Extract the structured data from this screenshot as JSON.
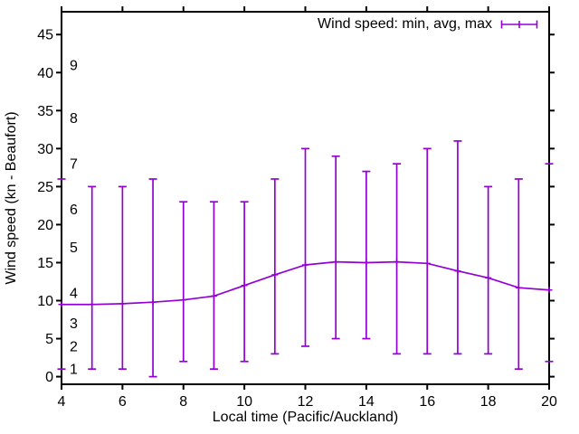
{
  "figure": {
    "background": "#ffffff",
    "text_color": "#000000",
    "border_color": "#000000"
  },
  "chart_data": {
    "type": "line",
    "subtype": "errorbars-min-avg-max",
    "title": "",
    "xlabel": "Local time (Pacific/Auckland)",
    "ylabel": "Wind speed (kn - Beaufort)",
    "legend": "Wind speed: min, avg, max",
    "legend_position": "top-right-inside",
    "series_color": "#9400d3",
    "xlim": [
      4,
      20
    ],
    "ylim": [
      -1,
      48
    ],
    "xticks": [
      4,
      6,
      8,
      10,
      12,
      14,
      16,
      18,
      20
    ],
    "xtick_labels": [
      "4",
      "6",
      "8",
      "10",
      "12",
      "14",
      "16",
      "18",
      "20"
    ],
    "yticks": [
      0,
      5,
      10,
      15,
      20,
      25,
      30,
      35,
      40,
      45
    ],
    "ytick_labels": [
      "0",
      "5",
      "10",
      "15",
      "20",
      "25",
      "30",
      "35",
      "40",
      "45"
    ],
    "grid": false,
    "beaufort_scale_labels": [
      {
        "force": "1",
        "kn": 1
      },
      {
        "force": "2",
        "kn": 4
      },
      {
        "force": "3",
        "kn": 7
      },
      {
        "force": "4",
        "kn": 11
      },
      {
        "force": "5",
        "kn": 17
      },
      {
        "force": "6",
        "kn": 22
      },
      {
        "force": "7",
        "kn": 28
      },
      {
        "force": "8",
        "kn": 34
      },
      {
        "force": "9",
        "kn": 41
      }
    ],
    "points": [
      {
        "x": 4,
        "min": 1,
        "avg": 9.5,
        "max": 26,
        "clipped": true
      },
      {
        "x": 5,
        "min": 1,
        "avg": 9.5,
        "max": 25
      },
      {
        "x": 6,
        "min": 1,
        "avg": 9.6,
        "max": 25
      },
      {
        "x": 7,
        "min": 0,
        "avg": 9.8,
        "max": 26
      },
      {
        "x": 8,
        "min": 2,
        "avg": 10.1,
        "max": 23
      },
      {
        "x": 9,
        "min": 1,
        "avg": 10.6,
        "max": 23
      },
      {
        "x": 10,
        "min": 2,
        "avg": 12.0,
        "max": 23
      },
      {
        "x": 11,
        "min": 3,
        "avg": 13.4,
        "max": 26
      },
      {
        "x": 12,
        "min": 4,
        "avg": 14.7,
        "max": 30
      },
      {
        "x": 13,
        "min": 5,
        "avg": 15.1,
        "max": 29
      },
      {
        "x": 14,
        "min": 5,
        "avg": 15.0,
        "max": 27
      },
      {
        "x": 15,
        "min": 3,
        "avg": 15.1,
        "max": 28
      },
      {
        "x": 16,
        "min": 3,
        "avg": 14.9,
        "max": 30
      },
      {
        "x": 17,
        "min": 3,
        "avg": 13.9,
        "max": 31
      },
      {
        "x": 18,
        "min": 3,
        "avg": 13.0,
        "max": 25
      },
      {
        "x": 19,
        "min": 1,
        "avg": 11.7,
        "max": 26
      },
      {
        "x": 20,
        "min": 2,
        "avg": 11.4,
        "max": 28,
        "clipped": true
      }
    ]
  }
}
